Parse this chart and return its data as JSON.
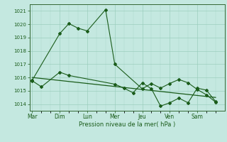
{
  "xlabel": "Pression niveau de la mer( hPa )",
  "ylim": [
    1013.5,
    1021.5
  ],
  "yticks": [
    1014,
    1015,
    1016,
    1017,
    1018,
    1019,
    1020,
    1021
  ],
  "day_labels": [
    "Mar",
    "Dim",
    "Lun",
    "Mer",
    "Jeu",
    "Ven",
    "Sam"
  ],
  "background_color": "#c4e8e0",
  "grid_color": "#99ccbb",
  "line_color": "#1a5c1a",
  "series1_x": [
    0,
    3,
    4,
    5,
    6,
    8,
    9,
    12,
    13,
    14,
    15,
    16,
    17,
    18,
    19,
    20
  ],
  "series1_y": [
    1015.8,
    1019.3,
    1020.05,
    1019.7,
    1019.5,
    1021.1,
    1017.0,
    1015.15,
    1015.55,
    1015.2,
    1015.55,
    1015.85,
    1015.6,
    1015.1,
    1014.7,
    1014.15
  ],
  "series2_x": [
    0,
    1,
    3,
    4,
    9,
    10,
    11,
    12,
    13,
    14,
    15,
    16,
    17,
    18,
    19,
    20
  ],
  "series2_y": [
    1015.75,
    1015.3,
    1016.4,
    1016.15,
    1015.5,
    1015.2,
    1014.85,
    1015.6,
    1015.15,
    1013.85,
    1014.1,
    1014.45,
    1014.1,
    1015.2,
    1015.05,
    1014.2
  ],
  "trend_x": [
    0,
    20
  ],
  "trend_y": [
    1016.0,
    1014.5
  ],
  "day_positions": [
    0,
    3,
    6,
    9,
    12,
    15,
    18
  ],
  "xlim": [
    -0.3,
    21.0
  ]
}
